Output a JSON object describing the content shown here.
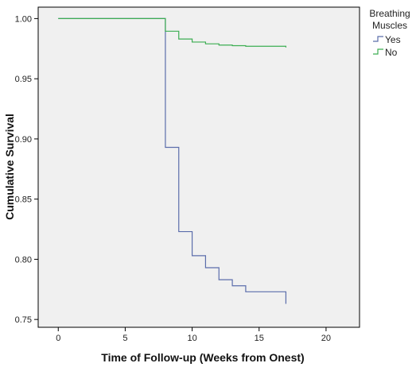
{
  "chart_data": {
    "type": "line",
    "subtype": "kaplan-meier-step",
    "xlabel": "Time of Follow-up (Weeks from Onest)",
    "ylabel": "Cumulative Survival",
    "xlim": [
      -1.5,
      22.5
    ],
    "ylim": [
      0.7435,
      1.0095
    ],
    "x_ticks": [
      0,
      5,
      10,
      15,
      20
    ],
    "y_ticks": [
      0.75,
      0.8,
      0.85,
      0.9,
      0.95,
      1.0
    ],
    "y_tick_labels": [
      "0.75",
      "0.80",
      "0.85",
      "0.90",
      "0.95",
      "1.00"
    ],
    "grid": false,
    "background": "#f0f0f0",
    "legend": {
      "title": "Breathing Muscles",
      "title_lines": [
        "Breathing",
        "Muscles"
      ],
      "position": "top-right-outside"
    },
    "series": [
      {
        "name": "Yes",
        "color": "#5b6dab",
        "points": [
          [
            0,
            1.0
          ],
          [
            8,
            1.0
          ],
          [
            8,
            0.893
          ],
          [
            9,
            0.893
          ],
          [
            9,
            0.823
          ],
          [
            10,
            0.823
          ],
          [
            10,
            0.803
          ],
          [
            11,
            0.803
          ],
          [
            11,
            0.793
          ],
          [
            12,
            0.793
          ],
          [
            12,
            0.783
          ],
          [
            13,
            0.783
          ],
          [
            13,
            0.778
          ],
          [
            14,
            0.778
          ],
          [
            14,
            0.773
          ],
          [
            17,
            0.773
          ],
          [
            17,
            0.763
          ]
        ]
      },
      {
        "name": "No",
        "color": "#3cad52",
        "points": [
          [
            0,
            1.0
          ],
          [
            8,
            1.0
          ],
          [
            8,
            0.9895
          ],
          [
            9,
            0.9895
          ],
          [
            9,
            0.983
          ],
          [
            10,
            0.983
          ],
          [
            10,
            0.9805
          ],
          [
            11,
            0.9805
          ],
          [
            11,
            0.979
          ],
          [
            12,
            0.979
          ],
          [
            12,
            0.978
          ],
          [
            13,
            0.978
          ],
          [
            13,
            0.9775
          ],
          [
            14,
            0.9775
          ],
          [
            14,
            0.977
          ],
          [
            17,
            0.977
          ],
          [
            17,
            0.976
          ]
        ]
      }
    ]
  }
}
